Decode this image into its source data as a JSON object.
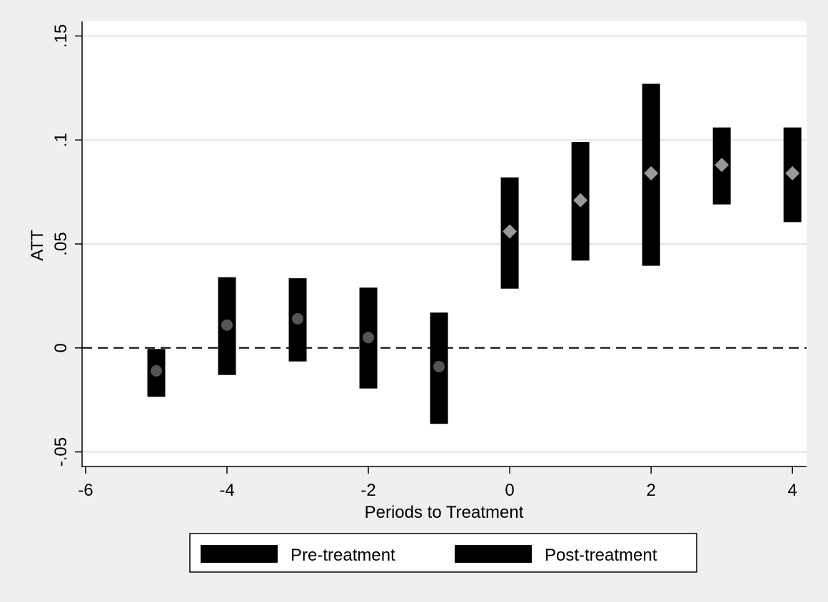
{
  "chart_data": {
    "type": "event-study",
    "xlabel": "Periods to Treatment",
    "ylabel": "ATT",
    "xlim": [
      -6.05,
      4.2
    ],
    "ylim": [
      -0.057,
      0.157
    ],
    "x_ticks": [
      -6,
      -4,
      -2,
      0,
      2,
      4
    ],
    "x_tick_labels": [
      "-6",
      "-4",
      "-2",
      "0",
      "2",
      "4"
    ],
    "y_ticks": [
      -0.05,
      0,
      0.05,
      0.1,
      0.15
    ],
    "y_tick_labels": [
      "-.05",
      "0",
      ".05",
      ".1",
      ".15"
    ],
    "grid": "horizontal",
    "reference_line": {
      "y": 0,
      "style": "dashed"
    },
    "legend_position": "bottom",
    "series": [
      {
        "name": "Pre-treatment",
        "marker": "circle",
        "marker_color": "#555555",
        "bar_color": "#000000",
        "points": [
          {
            "x": -5,
            "y": -0.011,
            "lo": -0.0235,
            "hi": -0.0005
          },
          {
            "x": -4,
            "y": 0.011,
            "lo": -0.013,
            "hi": 0.034
          },
          {
            "x": -3,
            "y": 0.014,
            "lo": -0.0065,
            "hi": 0.0335
          },
          {
            "x": -2,
            "y": 0.005,
            "lo": -0.0195,
            "hi": 0.029
          },
          {
            "x": -1,
            "y": -0.009,
            "lo": -0.0365,
            "hi": 0.017
          }
        ]
      },
      {
        "name": "Post-treatment",
        "marker": "diamond",
        "marker_color": "#999999",
        "bar_color": "#000000",
        "points": [
          {
            "x": 0,
            "y": 0.056,
            "lo": 0.0285,
            "hi": 0.082
          },
          {
            "x": 1,
            "y": 0.071,
            "lo": 0.042,
            "hi": 0.099
          },
          {
            "x": 2,
            "y": 0.084,
            "lo": 0.0395,
            "hi": 0.127
          },
          {
            "x": 3,
            "y": 0.088,
            "lo": 0.069,
            "hi": 0.106
          },
          {
            "x": 4,
            "y": 0.084,
            "lo": 0.0605,
            "hi": 0.106
          }
        ]
      }
    ]
  }
}
